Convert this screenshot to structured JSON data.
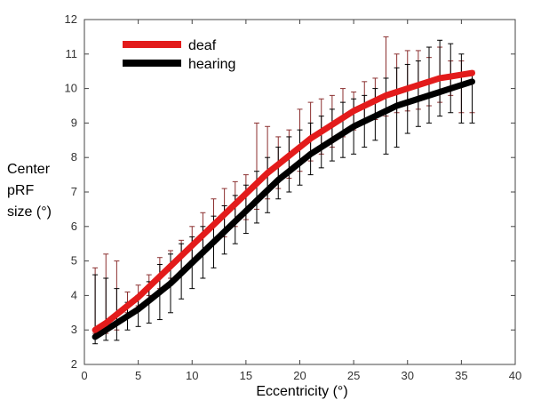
{
  "chart_data": {
    "type": "line",
    "title": "",
    "xlabel": "Eccentricity (°)",
    "ylabel_lines": [
      "Center",
      "pRF",
      "size (°)"
    ],
    "xlim": [
      0,
      40
    ],
    "ylim": [
      2,
      12
    ],
    "xticks": [
      "0",
      "5",
      "10",
      "15",
      "20",
      "25",
      "30",
      "35",
      "40"
    ],
    "yticks": [
      "2",
      "3",
      "4",
      "5",
      "6",
      "7",
      "8",
      "9",
      "10",
      "11",
      "12"
    ],
    "legend_position": "top-left",
    "series": [
      {
        "name": "deaf",
        "color": "#e31b1b",
        "error_color": "#8b2f2f",
        "x": [
          1,
          2,
          3,
          4,
          5,
          6,
          7,
          8,
          9,
          10,
          11,
          12,
          13,
          14,
          15,
          16,
          17,
          18,
          19,
          20,
          21,
          22,
          23,
          24,
          25,
          26,
          27,
          28,
          29,
          30,
          31,
          32,
          33,
          34,
          35,
          36
        ],
        "y": [
          3.0,
          3.2,
          3.45,
          3.7,
          3.95,
          4.25,
          4.55,
          4.85,
          5.15,
          5.45,
          5.75,
          6.05,
          6.35,
          6.65,
          6.95,
          7.25,
          7.55,
          7.8,
          8.05,
          8.3,
          8.55,
          8.75,
          8.95,
          9.15,
          9.35,
          9.5,
          9.65,
          9.8,
          9.9,
          10.0,
          10.1,
          10.2,
          10.3,
          10.35,
          10.4,
          10.45
        ],
        "err_low": [
          2.9,
          2.9,
          3.0,
          3.5,
          3.7,
          4.0,
          4.2,
          4.5,
          4.7,
          5.0,
          5.2,
          5.5,
          5.7,
          6.0,
          6.2,
          6.5,
          6.8,
          7.1,
          7.4,
          7.6,
          7.9,
          8.1,
          8.3,
          8.6,
          8.8,
          9.0,
          9.1,
          9.2,
          9.3,
          9.35,
          9.4,
          9.5,
          9.6,
          9.8,
          9.3,
          9.3
        ],
        "err_high": [
          4.8,
          5.2,
          5.0,
          4.1,
          4.3,
          4.6,
          5.1,
          5.3,
          5.6,
          6.0,
          6.4,
          6.8,
          7.1,
          7.3,
          7.5,
          9.0,
          8.9,
          8.6,
          8.8,
          9.4,
          9.6,
          9.7,
          9.8,
          10.0,
          9.9,
          10.2,
          10.3,
          11.5,
          11.0,
          11.1,
          11.1,
          10.9,
          11.2,
          10.8,
          10.8,
          10.5
        ]
      },
      {
        "name": "hearing",
        "color": "#000000",
        "error_color": "#000000",
        "x": [
          1,
          2,
          3,
          4,
          5,
          6,
          7,
          8,
          9,
          10,
          11,
          12,
          13,
          14,
          15,
          16,
          17,
          18,
          19,
          20,
          21,
          22,
          23,
          24,
          25,
          26,
          27,
          28,
          29,
          30,
          31,
          32,
          33,
          34,
          35,
          36
        ],
        "y": [
          2.8,
          3.0,
          3.2,
          3.4,
          3.6,
          3.85,
          4.1,
          4.35,
          4.65,
          4.95,
          5.25,
          5.55,
          5.85,
          6.15,
          6.45,
          6.75,
          7.05,
          7.35,
          7.6,
          7.85,
          8.1,
          8.3,
          8.5,
          8.7,
          8.9,
          9.05,
          9.2,
          9.35,
          9.5,
          9.6,
          9.7,
          9.8,
          9.9,
          10.0,
          10.1,
          10.2
        ],
        "err_low": [
          2.6,
          2.7,
          2.7,
          3.0,
          3.1,
          3.2,
          3.3,
          3.5,
          3.9,
          4.2,
          4.5,
          4.8,
          5.2,
          5.5,
          5.8,
          6.1,
          6.4,
          6.8,
          7.0,
          7.2,
          7.5,
          7.7,
          7.9,
          8.0,
          8.1,
          8.3,
          8.5,
          8.1,
          8.3,
          8.7,
          8.9,
          9.0,
          9.2,
          9.3,
          9.0,
          9.0
        ],
        "err_high": [
          4.6,
          4.5,
          4.2,
          3.8,
          4.0,
          4.4,
          4.9,
          5.2,
          5.5,
          5.7,
          6.0,
          6.3,
          6.6,
          6.9,
          7.2,
          7.6,
          8.0,
          8.3,
          8.6,
          8.8,
          9.0,
          9.2,
          9.4,
          9.6,
          9.7,
          9.8,
          10.0,
          10.3,
          10.6,
          10.7,
          10.8,
          11.2,
          11.4,
          11.3,
          11.0,
          10.5
        ]
      }
    ]
  }
}
